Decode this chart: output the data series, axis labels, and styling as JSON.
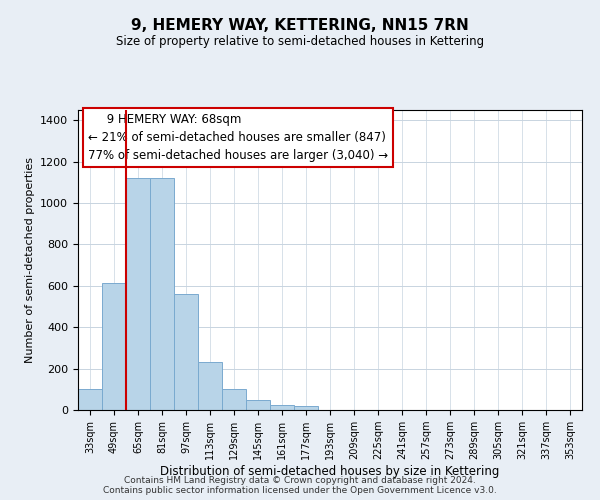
{
  "title": "9, HEMERY WAY, KETTERING, NN15 7RN",
  "subtitle": "Size of property relative to semi-detached houses in Kettering",
  "xlabel": "Distribution of semi-detached houses by size in Kettering",
  "ylabel": "Number of semi-detached properties",
  "bar_values": [
    100,
    615,
    1120,
    1120,
    560,
    230,
    100,
    50,
    25,
    20,
    0,
    0,
    0,
    0,
    0,
    0,
    0,
    0,
    0,
    0,
    0
  ],
  "bin_labels": [
    "33sqm",
    "49sqm",
    "65sqm",
    "81sqm",
    "97sqm",
    "113sqm",
    "129sqm",
    "145sqm",
    "161sqm",
    "177sqm",
    "193sqm",
    "209sqm",
    "225sqm",
    "241sqm",
    "257sqm",
    "273sqm",
    "289sqm",
    "305sqm",
    "321sqm",
    "337sqm",
    "353sqm"
  ],
  "bar_color": "#b8d4e8",
  "bar_edge_color": "#7aaacf",
  "property_line_x": 2.0,
  "property_line_color": "#cc0000",
  "ylim": [
    0,
    1450
  ],
  "yticks": [
    0,
    200,
    400,
    600,
    800,
    1000,
    1200,
    1400
  ],
  "annotation_title": "9 HEMERY WAY: 68sqm",
  "annotation_line1": "← 21% of semi-detached houses are smaller (847)",
  "annotation_line2": "77% of semi-detached houses are larger (3,040) →",
  "footer_line1": "Contains HM Land Registry data © Crown copyright and database right 2024.",
  "footer_line2": "Contains public sector information licensed under the Open Government Licence v3.0.",
  "background_color": "#e8eef5",
  "plot_bg_color": "#ffffff",
  "grid_color": "#c8d4e0"
}
